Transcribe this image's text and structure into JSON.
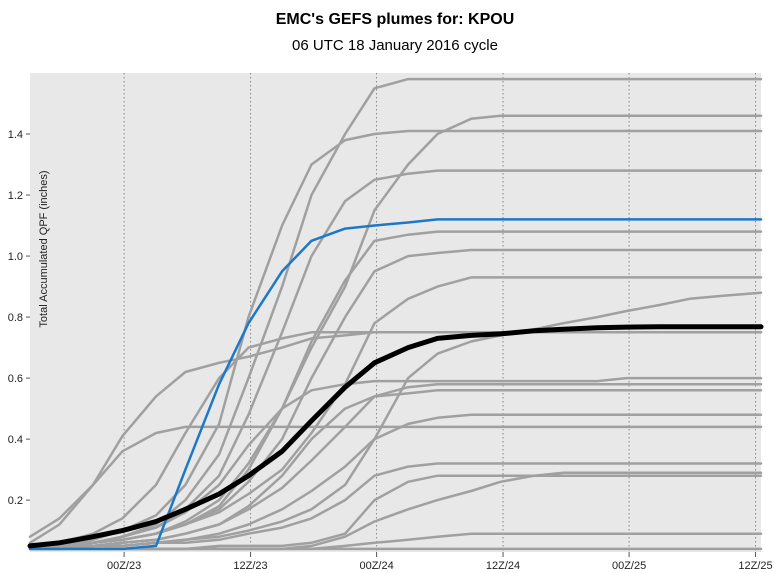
{
  "chart_data": {
    "type": "line",
    "title": "EMC's GEFS plumes for: KPOU",
    "subtitle": "06 UTC 18 January 2016 cycle",
    "ylabel": "Total Accumulated QPF (inches)",
    "xlabel": "",
    "xlim": [
      0,
      174
    ],
    "ylim": [
      0.03,
      1.6
    ],
    "x_ticks": [
      {
        "x": 22.4,
        "label": "00Z/23"
      },
      {
        "x": 52.5,
        "label": "12Z/23"
      },
      {
        "x": 82.5,
        "label": "00Z/24"
      },
      {
        "x": 112.6,
        "label": "12Z/24"
      },
      {
        "x": 142.6,
        "label": "00Z/25"
      },
      {
        "x": 172.7,
        "label": "12Z/25"
      }
    ],
    "y_ticks": [
      {
        "y": 0.2,
        "label": "0.2"
      },
      {
        "y": 0.4,
        "label": "0.4"
      },
      {
        "y": 0.6,
        "label": "0.6"
      },
      {
        "y": 0.8,
        "label": "0.8"
      },
      {
        "y": 1.0,
        "label": "1.0"
      },
      {
        "y": 1.2,
        "label": "1.2"
      },
      {
        "y": 1.4,
        "label": "1.4"
      }
    ],
    "grid": true,
    "colors": {
      "background": "#e8e8e8",
      "member": "#a0a0a0",
      "highlight": "#1e78c8",
      "mean": "#000000",
      "grid": "#888888"
    },
    "series": [
      {
        "role": "member",
        "x": [
          0,
          7,
          15,
          22,
          30,
          37,
          45,
          52,
          60,
          67,
          75,
          82,
          90,
          97,
          105,
          112,
          120,
          127,
          135,
          142,
          150,
          157,
          165,
          174
        ],
        "y": [
          0.04,
          0.05,
          0.06,
          0.07,
          0.09,
          0.12,
          0.18,
          0.3,
          0.5,
          0.7,
          0.9,
          1.15,
          1.3,
          1.4,
          1.45,
          1.46,
          1.46,
          1.46,
          1.46,
          1.46,
          1.46,
          1.46,
          1.46,
          1.46
        ]
      },
      {
        "role": "member",
        "x": [
          0,
          7,
          15,
          22,
          30,
          37,
          45,
          52,
          60,
          67,
          75,
          82,
          90,
          97,
          105,
          112,
          120,
          127,
          135,
          142,
          150,
          157,
          165,
          174
        ],
        "y": [
          0.04,
          0.05,
          0.06,
          0.08,
          0.12,
          0.2,
          0.35,
          0.6,
          0.9,
          1.2,
          1.4,
          1.55,
          1.58,
          1.58,
          1.58,
          1.58,
          1.58,
          1.58,
          1.58,
          1.58,
          1.58,
          1.58,
          1.58,
          1.58
        ]
      },
      {
        "role": "member",
        "x": [
          0,
          7,
          15,
          22,
          30,
          37,
          45,
          52,
          60,
          67,
          75,
          82,
          90,
          97,
          105,
          112,
          120,
          127,
          135,
          142,
          150,
          157,
          165,
          174
        ],
        "y": [
          0.04,
          0.05,
          0.07,
          0.1,
          0.15,
          0.25,
          0.45,
          0.8,
          1.1,
          1.3,
          1.38,
          1.4,
          1.41,
          1.41,
          1.41,
          1.41,
          1.41,
          1.41,
          1.41,
          1.41,
          1.41,
          1.41,
          1.41,
          1.41
        ]
      },
      {
        "role": "member",
        "x": [
          0,
          7,
          15,
          22,
          30,
          37,
          45,
          52,
          60,
          67,
          75,
          82,
          90,
          97,
          105,
          112,
          120,
          127,
          135,
          142,
          150,
          157,
          165,
          174
        ],
        "y": [
          0.04,
          0.05,
          0.06,
          0.08,
          0.11,
          0.17,
          0.28,
          0.48,
          0.75,
          1.0,
          1.18,
          1.25,
          1.27,
          1.28,
          1.28,
          1.28,
          1.28,
          1.28,
          1.28,
          1.28,
          1.28,
          1.28,
          1.28,
          1.28
        ]
      },
      {
        "role": "member",
        "x": [
          0,
          7,
          15,
          22,
          30,
          37,
          45,
          52,
          60,
          67,
          75,
          82,
          90,
          97,
          105,
          112,
          120,
          127,
          135,
          142,
          150,
          157,
          165,
          174
        ],
        "y": [
          0.04,
          0.05,
          0.06,
          0.07,
          0.09,
          0.13,
          0.2,
          0.32,
          0.5,
          0.72,
          0.92,
          1.05,
          1.07,
          1.08,
          1.08,
          1.08,
          1.08,
          1.08,
          1.08,
          1.08,
          1.08,
          1.08,
          1.08,
          1.08
        ]
      },
      {
        "role": "member",
        "x": [
          0,
          7,
          15,
          22,
          30,
          37,
          45,
          52,
          60,
          67,
          75,
          82,
          90,
          97,
          105,
          112,
          120,
          127,
          135,
          142,
          150,
          157,
          165,
          174
        ],
        "y": [
          0.04,
          0.05,
          0.06,
          0.07,
          0.09,
          0.12,
          0.17,
          0.26,
          0.4,
          0.6,
          0.8,
          0.95,
          1.0,
          1.01,
          1.02,
          1.02,
          1.02,
          1.02,
          1.02,
          1.02,
          1.02,
          1.02,
          1.02,
          1.02
        ]
      },
      {
        "role": "member",
        "x": [
          0,
          7,
          15,
          22,
          30,
          37,
          45,
          52,
          60,
          67,
          75,
          82,
          90,
          97,
          105,
          112,
          120,
          127,
          135,
          142,
          150,
          157,
          165,
          174
        ],
        "y": [
          0.04,
          0.06,
          0.09,
          0.14,
          0.25,
          0.42,
          0.6,
          0.7,
          0.73,
          0.75,
          0.75,
          0.75,
          0.75,
          0.75,
          0.75,
          0.75,
          0.75,
          0.75,
          0.75,
          0.75,
          0.75,
          0.75,
          0.75,
          0.75
        ]
      },
      {
        "role": "member",
        "x": [
          0,
          7,
          15,
          22,
          30,
          37,
          45,
          52,
          60,
          67,
          75,
          82,
          90,
          97,
          105,
          112,
          120,
          127,
          135,
          142,
          150,
          157,
          165,
          174
        ],
        "y": [
          0.06,
          0.12,
          0.25,
          0.41,
          0.54,
          0.62,
          0.65,
          0.67,
          0.7,
          0.73,
          0.74,
          0.75,
          0.75,
          0.75,
          0.75,
          0.75,
          0.75,
          0.75,
          0.75,
          0.75,
          0.75,
          0.75,
          0.75,
          0.75
        ]
      },
      {
        "role": "member",
        "x": [
          0,
          7,
          15,
          22,
          30,
          37,
          45,
          52,
          60,
          67,
          75,
          82,
          90,
          97,
          105,
          112,
          120,
          127,
          135,
          142,
          150,
          157,
          165,
          174
        ],
        "y": [
          0.04,
          0.05,
          0.06,
          0.07,
          0.09,
          0.12,
          0.16,
          0.22,
          0.3,
          0.42,
          0.58,
          0.78,
          0.86,
          0.9,
          0.93,
          0.93,
          0.93,
          0.93,
          0.93,
          0.93,
          0.93,
          0.93,
          0.93,
          0.93
        ]
      },
      {
        "role": "member",
        "x": [
          0,
          7,
          15,
          22,
          30,
          37,
          45,
          52,
          60,
          67,
          75,
          82,
          90,
          97,
          105,
          112,
          120,
          127,
          135,
          142,
          150,
          157,
          165,
          174
        ],
        "y": [
          0.08,
          0.14,
          0.25,
          0.36,
          0.42,
          0.44,
          0.44,
          0.44,
          0.44,
          0.44,
          0.44,
          0.44,
          0.44,
          0.44,
          0.44,
          0.44,
          0.44,
          0.44,
          0.44,
          0.44,
          0.44,
          0.44,
          0.44,
          0.44
        ]
      },
      {
        "role": "member",
        "x": [
          0,
          7,
          15,
          22,
          30,
          37,
          45,
          52,
          60,
          67,
          75,
          82,
          90,
          97,
          105,
          112,
          120,
          127,
          135,
          142,
          150,
          157,
          165,
          174
        ],
        "y": [
          0.04,
          0.05,
          0.06,
          0.08,
          0.11,
          0.16,
          0.25,
          0.38,
          0.5,
          0.56,
          0.58,
          0.59,
          0.59,
          0.59,
          0.59,
          0.59,
          0.59,
          0.59,
          0.59,
          0.6,
          0.6,
          0.6,
          0.6,
          0.6
        ]
      },
      {
        "role": "member",
        "x": [
          0,
          7,
          15,
          22,
          30,
          37,
          45,
          52,
          60,
          67,
          75,
          82,
          90,
          97,
          105,
          112,
          120,
          127,
          135,
          142,
          150,
          157,
          165,
          174
        ],
        "y": [
          0.04,
          0.05,
          0.05,
          0.06,
          0.07,
          0.09,
          0.12,
          0.18,
          0.28,
          0.4,
          0.5,
          0.54,
          0.55,
          0.56,
          0.56,
          0.56,
          0.56,
          0.56,
          0.56,
          0.56,
          0.56,
          0.56,
          0.56,
          0.56
        ]
      },
      {
        "role": "member",
        "x": [
          0,
          7,
          15,
          22,
          30,
          37,
          45,
          52,
          60,
          67,
          75,
          82,
          90,
          97,
          105,
          112,
          120,
          127,
          135,
          142,
          150,
          157,
          165,
          174
        ],
        "y": [
          0.04,
          0.04,
          0.05,
          0.05,
          0.06,
          0.07,
          0.08,
          0.1,
          0.13,
          0.17,
          0.25,
          0.4,
          0.6,
          0.68,
          0.72,
          0.74,
          0.76,
          0.78,
          0.8,
          0.82,
          0.84,
          0.86,
          0.87,
          0.88
        ]
      },
      {
        "role": "member",
        "x": [
          0,
          7,
          15,
          22,
          30,
          37,
          45,
          52,
          60,
          67,
          75,
          82,
          90,
          97,
          105,
          112,
          120,
          127,
          135,
          142,
          150,
          157,
          165,
          174
        ],
        "y": [
          0.04,
          0.05,
          0.05,
          0.06,
          0.07,
          0.09,
          0.12,
          0.17,
          0.24,
          0.33,
          0.44,
          0.54,
          0.57,
          0.58,
          0.58,
          0.58,
          0.58,
          0.58,
          0.58,
          0.58,
          0.58,
          0.58,
          0.58,
          0.58
        ]
      },
      {
        "role": "member",
        "x": [
          0,
          7,
          15,
          22,
          30,
          37,
          45,
          52,
          60,
          67,
          75,
          82,
          90,
          97,
          105,
          112,
          120,
          127,
          135,
          142,
          150,
          157,
          165,
          174
        ],
        "y": [
          0.04,
          0.04,
          0.05,
          0.05,
          0.06,
          0.07,
          0.09,
          0.12,
          0.17,
          0.23,
          0.31,
          0.4,
          0.45,
          0.47,
          0.48,
          0.48,
          0.48,
          0.48,
          0.48,
          0.48,
          0.48,
          0.48,
          0.48,
          0.48
        ]
      },
      {
        "role": "member",
        "x": [
          0,
          7,
          15,
          22,
          30,
          37,
          45,
          52,
          60,
          67,
          75,
          82,
          90,
          97,
          105,
          112,
          120,
          127,
          135,
          142,
          150,
          157,
          165,
          174
        ],
        "y": [
          0.04,
          0.04,
          0.05,
          0.05,
          0.06,
          0.06,
          0.07,
          0.09,
          0.11,
          0.14,
          0.2,
          0.28,
          0.31,
          0.32,
          0.32,
          0.32,
          0.32,
          0.32,
          0.32,
          0.32,
          0.32,
          0.32,
          0.32,
          0.32
        ]
      },
      {
        "role": "member",
        "x": [
          0,
          7,
          15,
          22,
          30,
          37,
          45,
          52,
          60,
          67,
          75,
          82,
          90,
          97,
          105,
          112,
          120,
          127,
          135,
          142,
          150,
          157,
          165,
          174
        ],
        "y": [
          0.04,
          0.04,
          0.04,
          0.04,
          0.04,
          0.04,
          0.05,
          0.05,
          0.05,
          0.06,
          0.09,
          0.2,
          0.26,
          0.28,
          0.28,
          0.28,
          0.28,
          0.28,
          0.28,
          0.28,
          0.28,
          0.28,
          0.28,
          0.28
        ]
      },
      {
        "role": "member",
        "x": [
          0,
          7,
          15,
          22,
          30,
          37,
          45,
          52,
          60,
          67,
          75,
          82,
          90,
          97,
          105,
          112,
          120,
          127,
          135,
          142,
          150,
          157,
          165,
          174
        ],
        "y": [
          0.04,
          0.04,
          0.04,
          0.04,
          0.04,
          0.04,
          0.04,
          0.04,
          0.04,
          0.05,
          0.08,
          0.13,
          0.17,
          0.2,
          0.23,
          0.26,
          0.28,
          0.29,
          0.29,
          0.29,
          0.29,
          0.29,
          0.29,
          0.29
        ]
      },
      {
        "role": "member",
        "x": [
          0,
          7,
          15,
          22,
          30,
          37,
          45,
          52,
          60,
          67,
          75,
          82,
          90,
          97,
          105,
          112,
          120,
          127,
          135,
          142,
          150,
          157,
          165,
          174
        ],
        "y": [
          0.04,
          0.04,
          0.04,
          0.04,
          0.04,
          0.04,
          0.04,
          0.04,
          0.04,
          0.04,
          0.05,
          0.06,
          0.07,
          0.08,
          0.09,
          0.09,
          0.09,
          0.09,
          0.09,
          0.09,
          0.09,
          0.09,
          0.09,
          0.09
        ]
      },
      {
        "role": "member",
        "x": [
          0,
          7,
          15,
          22,
          30,
          37,
          45,
          52,
          60,
          67,
          75,
          82,
          90,
          97,
          105,
          112,
          120,
          127,
          135,
          142,
          150,
          157,
          165,
          174
        ],
        "y": [
          0.04,
          0.04,
          0.04,
          0.04,
          0.04,
          0.04,
          0.04,
          0.04,
          0.04,
          0.04,
          0.04,
          0.04,
          0.04,
          0.04,
          0.04,
          0.04,
          0.04,
          0.04,
          0.04,
          0.04,
          0.04,
          0.04,
          0.04,
          0.04
        ]
      },
      {
        "role": "highlight",
        "x": [
          0,
          7,
          15,
          22,
          30,
          37,
          45,
          52,
          60,
          67,
          75,
          82,
          90,
          97,
          105,
          112,
          120,
          127,
          135,
          142,
          150,
          157,
          165,
          174
        ],
        "y": [
          0.04,
          0.04,
          0.04,
          0.04,
          0.05,
          0.3,
          0.58,
          0.78,
          0.95,
          1.05,
          1.09,
          1.1,
          1.11,
          1.12,
          1.12,
          1.12,
          1.12,
          1.12,
          1.12,
          1.12,
          1.12,
          1.12,
          1.12,
          1.12
        ]
      },
      {
        "role": "mean",
        "x": [
          0,
          7,
          15,
          22,
          30,
          37,
          45,
          52,
          60,
          67,
          75,
          82,
          90,
          97,
          105,
          112,
          120,
          127,
          135,
          142,
          150,
          157,
          165,
          174
        ],
        "y": [
          0.05,
          0.06,
          0.08,
          0.1,
          0.13,
          0.17,
          0.22,
          0.28,
          0.36,
          0.46,
          0.57,
          0.65,
          0.7,
          0.73,
          0.74,
          0.745,
          0.755,
          0.76,
          0.765,
          0.767,
          0.768,
          0.768,
          0.768,
          0.768
        ]
      }
    ]
  }
}
